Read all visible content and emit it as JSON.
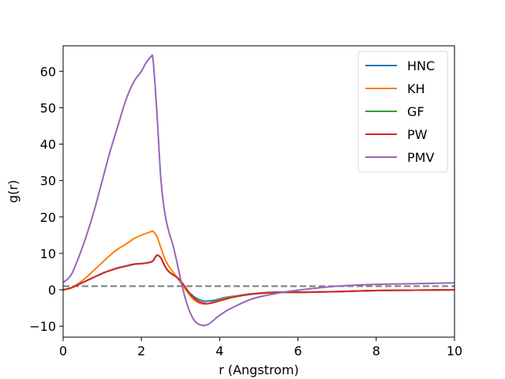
{
  "chart_data": {
    "type": "line",
    "title": "",
    "xlabel": "r (Angstrom)",
    "ylabel": "g(r)",
    "xlim": [
      0,
      10
    ],
    "ylim": [
      -13,
      67
    ],
    "xticks": [
      0,
      2,
      4,
      6,
      8,
      10
    ],
    "xtick_labels": [
      "0",
      "2",
      "4",
      "6",
      "8",
      "10"
    ],
    "yticks": [
      -10,
      0,
      10,
      20,
      30,
      40,
      50,
      60
    ],
    "ytick_labels": [
      "−10",
      "0",
      "10",
      "20",
      "30",
      "40",
      "50",
      "60"
    ],
    "grid": false,
    "legend_position": "top-right",
    "reference_line": {
      "y": 1,
      "style": "dashed",
      "color": "#808080"
    },
    "series": [
      {
        "name": "HNC",
        "color": "#1f77b4",
        "x": [
          0,
          0.2,
          0.4,
          0.6,
          0.8,
          1.0,
          1.2,
          1.4,
          1.6,
          1.8,
          2.0,
          2.2,
          2.3,
          2.4,
          2.5,
          2.6,
          2.7,
          2.8,
          2.9,
          3.0,
          3.1,
          3.2,
          3.3,
          3.4,
          3.5,
          3.6,
          3.7,
          3.8,
          3.9,
          4.0,
          4.2,
          4.4,
          4.6,
          4.8,
          5.0,
          5.3,
          5.6,
          6.0,
          6.5,
          7.0,
          8.0,
          9.0,
          10.0
        ],
        "y": [
          0,
          0.5,
          1.5,
          2.5,
          3.5,
          4.5,
          5.3,
          6.0,
          6.5,
          7.0,
          7.2,
          7.5,
          8.0,
          9.5,
          8.7,
          6.5,
          5.0,
          4.2,
          3.5,
          2.5,
          1.0,
          -0.5,
          -1.5,
          -2.3,
          -2.8,
          -3.1,
          -3.1,
          -3.0,
          -2.8,
          -2.5,
          -2.0,
          -1.7,
          -1.4,
          -1.1,
          -0.9,
          -0.7,
          -0.6,
          -0.6,
          -0.6,
          -0.5,
          -0.2,
          -0.1,
          0.0
        ]
      },
      {
        "name": "KH",
        "color": "#ff7f0e",
        "x": [
          0,
          0.2,
          0.4,
          0.6,
          0.8,
          1.0,
          1.2,
          1.4,
          1.6,
          1.8,
          2.0,
          2.2,
          2.3,
          2.4,
          2.5,
          2.6,
          2.7,
          2.8,
          2.9,
          3.0,
          3.1,
          3.2,
          3.3,
          3.4,
          3.5,
          3.6,
          3.7,
          3.8,
          3.9,
          4.0,
          4.2,
          4.4,
          4.6,
          4.8,
          5.0,
          5.3,
          5.6,
          6.0,
          6.5,
          7.0,
          8.0,
          9.0,
          10.0
        ],
        "y": [
          0,
          0.5,
          1.8,
          3.5,
          5.5,
          7.5,
          9.5,
          11.2,
          12.5,
          14.0,
          15.0,
          15.8,
          16.0,
          14.5,
          11.5,
          8.5,
          6.5,
          5.0,
          3.5,
          2.0,
          0.5,
          -1.0,
          -2.3,
          -3.2,
          -3.7,
          -3.9,
          -3.8,
          -3.5,
          -3.2,
          -2.8,
          -2.2,
          -1.8,
          -1.5,
          -1.2,
          -1.0,
          -0.8,
          -0.7,
          -0.7,
          -0.6,
          -0.5,
          -0.2,
          -0.1,
          0.0
        ]
      },
      {
        "name": "GF",
        "color": "#2ca02c",
        "x": [
          0,
          0.2,
          0.4,
          0.6,
          0.8,
          1.0,
          1.2,
          1.4,
          1.6,
          1.8,
          2.0,
          2.2,
          2.3,
          2.4,
          2.5,
          2.6,
          2.7,
          2.8,
          2.9,
          3.0,
          3.1,
          3.2,
          3.3,
          3.4,
          3.5,
          3.6,
          3.7,
          3.8,
          3.9,
          4.0,
          4.2,
          4.4,
          4.6,
          4.8,
          5.0,
          5.3,
          5.6,
          6.0,
          6.5,
          7.0,
          8.0,
          9.0,
          10.0
        ],
        "y": [
          0,
          0.5,
          1.5,
          2.5,
          3.5,
          4.5,
          5.3,
          6.0,
          6.5,
          7.0,
          7.2,
          7.5,
          8.0,
          9.5,
          8.7,
          6.5,
          5.0,
          4.2,
          3.5,
          2.5,
          1.0,
          -0.5,
          -1.8,
          -2.8,
          -3.4,
          -3.7,
          -3.8,
          -3.6,
          -3.3,
          -3.0,
          -2.4,
          -1.9,
          -1.5,
          -1.2,
          -1.0,
          -0.8,
          -0.7,
          -0.7,
          -0.6,
          -0.5,
          -0.2,
          -0.1,
          0.0
        ]
      },
      {
        "name": "PW",
        "color": "#d62728",
        "x": [
          0,
          0.2,
          0.4,
          0.6,
          0.8,
          1.0,
          1.2,
          1.4,
          1.6,
          1.8,
          2.0,
          2.2,
          2.3,
          2.4,
          2.5,
          2.6,
          2.7,
          2.8,
          2.9,
          3.0,
          3.1,
          3.2,
          3.3,
          3.4,
          3.5,
          3.6,
          3.7,
          3.8,
          3.9,
          4.0,
          4.2,
          4.4,
          4.6,
          4.8,
          5.0,
          5.3,
          5.6,
          6.0,
          6.5,
          7.0,
          8.0,
          9.0,
          10.0
        ],
        "y": [
          0,
          0.5,
          1.5,
          2.5,
          3.5,
          4.5,
          5.3,
          6.0,
          6.5,
          7.0,
          7.2,
          7.5,
          8.0,
          9.5,
          8.7,
          6.5,
          5.0,
          4.2,
          3.5,
          2.5,
          1.0,
          -0.5,
          -1.8,
          -2.8,
          -3.4,
          -3.7,
          -3.8,
          -3.6,
          -3.3,
          -3.0,
          -2.4,
          -1.9,
          -1.5,
          -1.2,
          -1.0,
          -0.8,
          -0.7,
          -0.7,
          -0.6,
          -0.5,
          -0.2,
          -0.1,
          0.0
        ]
      },
      {
        "name": "PMV",
        "color": "#9467bd",
        "x": [
          0,
          0.2,
          0.4,
          0.6,
          0.8,
          1.0,
          1.2,
          1.4,
          1.6,
          1.8,
          2.0,
          2.1,
          2.2,
          2.25,
          2.3,
          2.4,
          2.5,
          2.6,
          2.7,
          2.8,
          2.9,
          3.0,
          3.1,
          3.2,
          3.3,
          3.4,
          3.5,
          3.6,
          3.7,
          3.8,
          3.9,
          4.0,
          4.2,
          4.4,
          4.6,
          4.8,
          5.0,
          5.3,
          5.6,
          6.0,
          6.5,
          7.0,
          7.5,
          8.0,
          9.0,
          10.0
        ],
        "y": [
          2.0,
          4.0,
          9.0,
          15.0,
          22.0,
          30.0,
          38.0,
          45.0,
          52.0,
          57.0,
          60.0,
          62.0,
          63.5,
          64.0,
          63.0,
          48.0,
          30.0,
          21.0,
          16.0,
          12.5,
          8.0,
          3.0,
          -1.5,
          -5.0,
          -7.5,
          -9.0,
          -9.6,
          -9.8,
          -9.5,
          -8.8,
          -7.8,
          -7.0,
          -5.6,
          -4.5,
          -3.5,
          -2.6,
          -2.0,
          -1.3,
          -0.7,
          -0.1,
          0.5,
          1.0,
          1.3,
          1.5,
          1.7,
          1.9
        ]
      }
    ]
  }
}
